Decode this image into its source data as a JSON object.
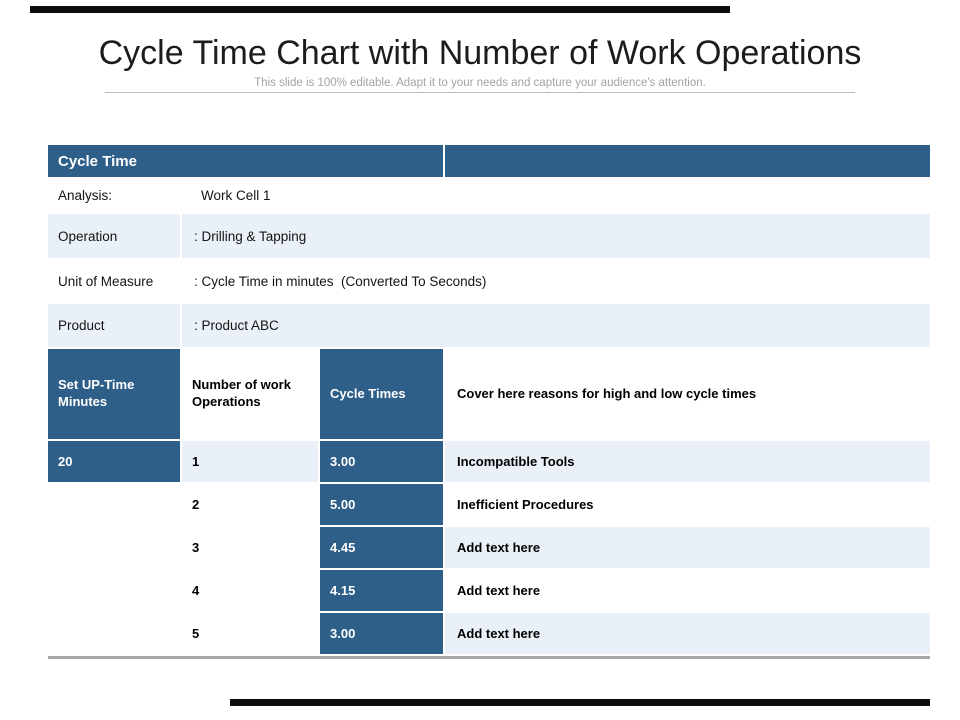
{
  "slide": {
    "title": "Cycle Time Chart with Number of Work Operations",
    "subtitle": "This slide is 100% editable. Adapt it to your needs and capture your audience's attention."
  },
  "info_table": {
    "header": "Cycle Time",
    "rows": [
      {
        "label": "Analysis:",
        "value": "Work Cell 1"
      },
      {
        "label": "Operation",
        "value": ": Drilling & Tapping"
      },
      {
        "label": "Unit of Measure",
        "value": ": Cycle Time in minutes  (Converted To Seconds)"
      },
      {
        "label": "Product",
        "value": ": Product ABC"
      }
    ]
  },
  "data_table": {
    "columns": [
      "Set UP-Time Minutes",
      "Number of work Operations",
      "Cycle Times",
      "Cover here reasons for high and low cycle times"
    ],
    "rows": [
      {
        "setup_time_minutes": "20",
        "operations": "1",
        "cycle_time": "3.00",
        "reason": "Incompatible Tools"
      },
      {
        "setup_time_minutes": "",
        "operations": "2",
        "cycle_time": "5.00",
        "reason": "Inefficient Procedures"
      },
      {
        "setup_time_minutes": "",
        "operations": "3",
        "cycle_time": "4.45",
        "reason": "Add text here"
      },
      {
        "setup_time_minutes": "",
        "operations": "4",
        "cycle_time": "4.15",
        "reason": "Add text here"
      },
      {
        "setup_time_minutes": "",
        "operations": "5",
        "cycle_time": "3.00",
        "reason": "Add text here"
      }
    ]
  },
  "colors": {
    "accent_blue": "#2e5f88",
    "light_row": "#eaf0f7",
    "accent_bar_black": "#0c0c0c",
    "table_bottom_border": "#a6a6a6"
  }
}
